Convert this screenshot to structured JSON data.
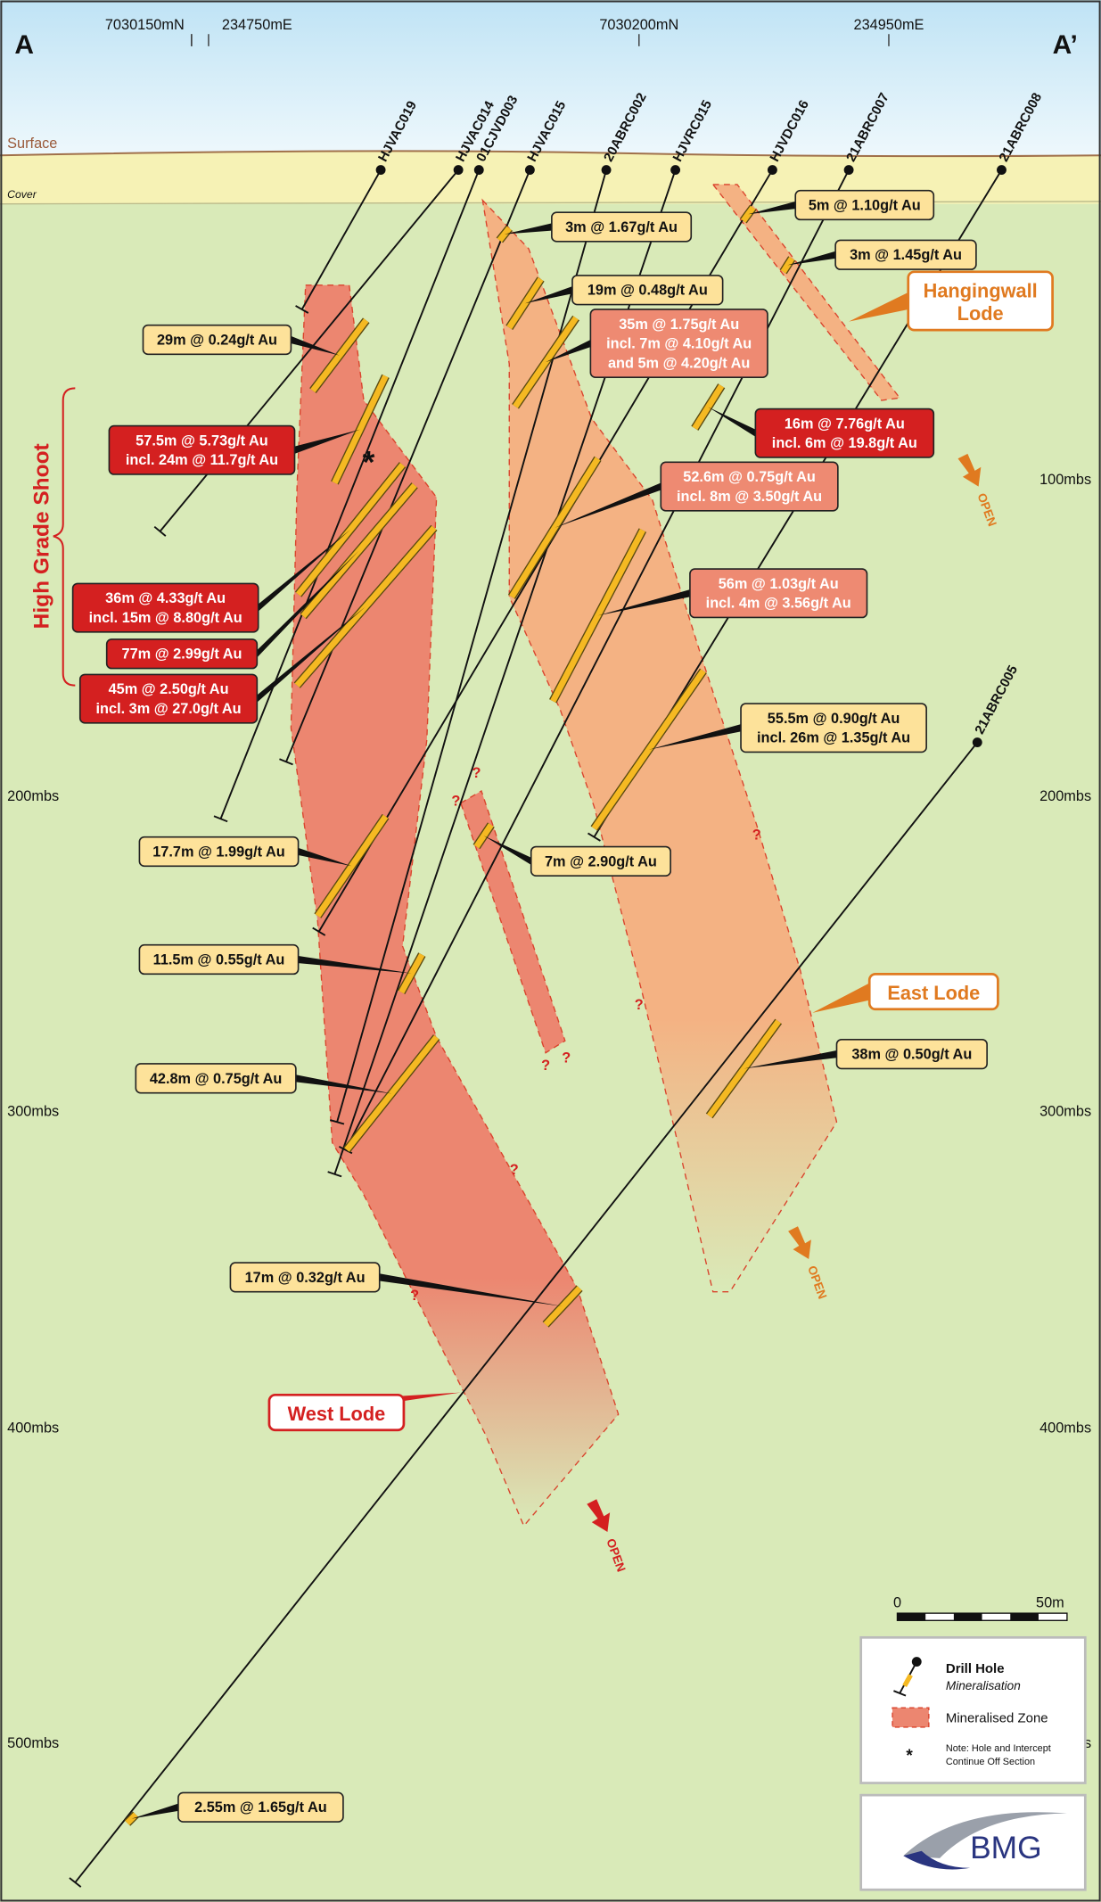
{
  "header": {
    "left_label": "A",
    "right_label": "A’",
    "coords": [
      "7030150mN",
      "234750mE",
      "7030200mN",
      "234950mE"
    ]
  },
  "surface_labels": {
    "surface": "Surface",
    "cover": "Cover"
  },
  "depth_labels": {
    "left": [
      "200mbs",
      "300mbs",
      "400mbs",
      "500mbs"
    ],
    "right": [
      "100mbs",
      "200mbs",
      "300mbs",
      "400mbs",
      "s"
    ]
  },
  "drill_holes": [
    "HJVAC019",
    "HJVAC014",
    "01CJVD003",
    "HJVAC015",
    "20ABRC002",
    "HJVRC015",
    "HJVDC016",
    "21ABRC007",
    "21ABRC008",
    "21ABRC005"
  ],
  "intercepts": [
    {
      "lines": [
        "29m @ 0.24g/t Au"
      ]
    },
    {
      "lines": [
        "57.5m @ 5.73g/t Au",
        "incl. 24m @ 11.7g/t Au"
      ]
    },
    {
      "lines": [
        "36m @ 4.33g/t Au",
        "incl. 15m @ 8.80g/t Au"
      ]
    },
    {
      "lines": [
        "77m @ 2.99g/t Au"
      ]
    },
    {
      "lines": [
        "45m @ 2.50g/t Au",
        "incl. 3m @ 27.0g/t Au"
      ]
    },
    {
      "lines": [
        "3m @ 1.67g/t Au"
      ]
    },
    {
      "lines": [
        "19m @ 0.48g/t Au"
      ]
    },
    {
      "lines": [
        "35m @ 1.75g/t Au",
        "incl. 7m @ 4.10g/t Au",
        "and 5m @ 4.20g/t Au"
      ]
    },
    {
      "lines": [
        "5m @ 1.10g/t Au"
      ]
    },
    {
      "lines": [
        "3m @ 1.45g/t Au"
      ]
    },
    {
      "lines": [
        "16m @ 7.76g/t Au",
        "incl. 6m @ 19.8g/t Au"
      ]
    },
    {
      "lines": [
        "52.6m @ 0.75g/t Au",
        "incl. 8m @ 3.50g/t Au"
      ]
    },
    {
      "lines": [
        "56m @ 1.03g/t Au",
        "incl. 4m @ 3.56g/t Au"
      ]
    },
    {
      "lines": [
        "55.5m @ 0.90g/t Au",
        "incl. 26m @ 1.35g/t Au"
      ]
    },
    {
      "lines": [
        "7m @ 2.90g/t Au"
      ]
    },
    {
      "lines": [
        "17.7m @ 1.99g/t Au"
      ]
    },
    {
      "lines": [
        "11.5m @ 0.55g/t Au"
      ]
    },
    {
      "lines": [
        "42.8m @ 0.75g/t Au"
      ]
    },
    {
      "lines": [
        "38m @ 0.50g/t Au"
      ]
    },
    {
      "lines": [
        "17m @ 0.32g/t Au"
      ]
    },
    {
      "lines": [
        "2.55m @ 1.65g/t Au"
      ]
    }
  ],
  "lodes": [
    {
      "lines": [
        "Hangingwall",
        "Lode"
      ]
    },
    {
      "lines": [
        "East Lode"
      ]
    },
    {
      "lines": [
        "West Lode"
      ]
    }
  ],
  "shoot_label": "High Grade Shoot",
  "open_labels": [
    "OPEN",
    "OPEN",
    "OPEN"
  ],
  "uncertainty_marks": [
    "?",
    "?",
    "?",
    "?",
    "?",
    "?",
    "?",
    "?"
  ],
  "off_section_marker": "*",
  "scale_bar": {
    "labels": [
      "0",
      "50m"
    ]
  },
  "legend": {
    "items": [
      {
        "label": "Drill Hole",
        "sublabel": "Mineralisation"
      },
      {
        "label": "Mineralised Zone"
      },
      {
        "symbol": "*",
        "lines": [
          "Note: Hole and Intercept",
          "Continue Off Section"
        ]
      }
    ]
  },
  "logo": "BMG"
}
